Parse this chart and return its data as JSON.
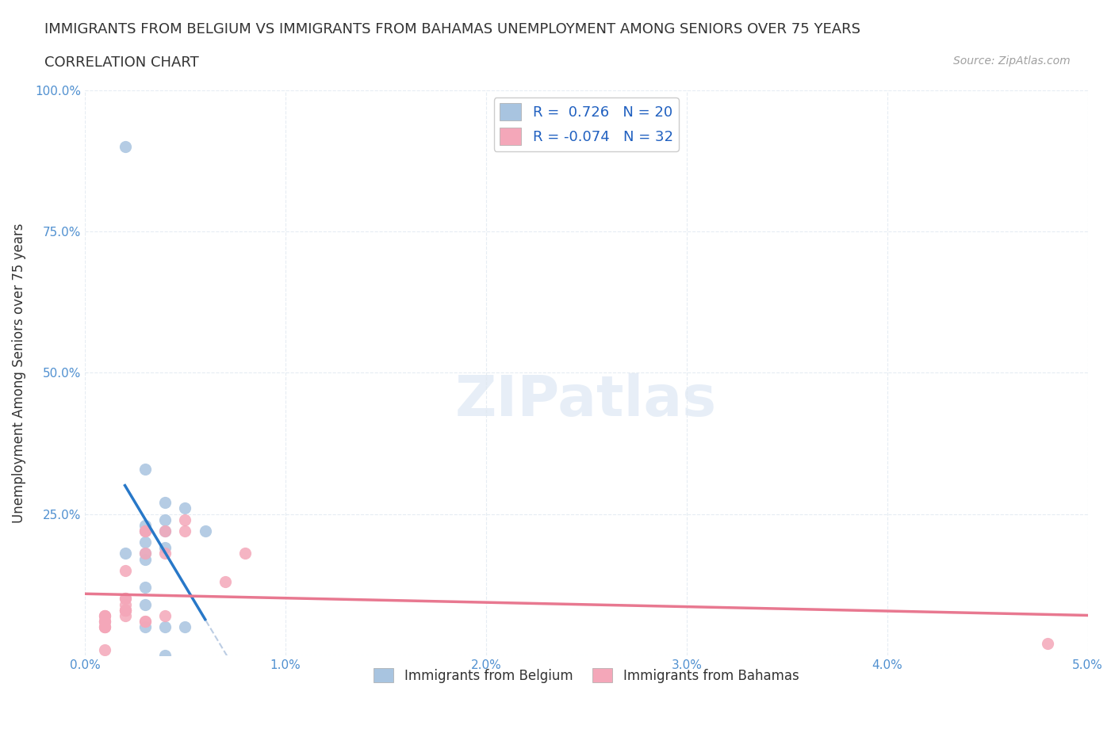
{
  "title_line1": "IMMIGRANTS FROM BELGIUM VS IMMIGRANTS FROM BAHAMAS UNEMPLOYMENT AMONG SENIORS OVER 75 YEARS",
  "title_line2": "CORRELATION CHART",
  "source": "Source: ZipAtlas.com",
  "xlabel": "Immigrants from Belgium",
  "ylabel": "Unemployment Among Seniors over 75 years",
  "watermark": "ZIPatlas",
  "xlim": [
    0.0,
    0.05
  ],
  "ylim": [
    0.0,
    1.0
  ],
  "xticks": [
    0.0,
    0.01,
    0.02,
    0.03,
    0.04,
    0.05
  ],
  "yticks": [
    0.0,
    0.25,
    0.5,
    0.75,
    1.0
  ],
  "xtick_labels": [
    "0.0%",
    "1.0%",
    "2.0%",
    "3.0%",
    "4.0%",
    "5.0%"
  ],
  "ytick_labels": [
    "",
    "25.0%",
    "50.0%",
    "75.0%",
    "100.0%"
  ],
  "belgium_r": 0.726,
  "belgium_n": 20,
  "bahamas_r": -0.074,
  "bahamas_n": 32,
  "belgium_color": "#a8c4e0",
  "bahamas_color": "#f4a7b9",
  "belgium_line_color": "#2878c8",
  "bahamas_line_color": "#e87890",
  "trend_line_color": "#a0b8d8",
  "background_color": "#ffffff",
  "grid_color": "#e0e8f0",
  "belgium_scatter_x": [
    0.002,
    0.003,
    0.002,
    0.003,
    0.003,
    0.004,
    0.003,
    0.003,
    0.004,
    0.003,
    0.004,
    0.004,
    0.005,
    0.004,
    0.005,
    0.006,
    0.004,
    0.003,
    0.003,
    0.003
  ],
  "belgium_scatter_y": [
    0.9,
    0.33,
    0.18,
    0.22,
    0.18,
    0.19,
    0.2,
    0.17,
    0.22,
    0.23,
    0.24,
    0.27,
    0.26,
    0.0,
    0.05,
    0.22,
    0.05,
    0.12,
    0.05,
    0.09
  ],
  "bahamas_scatter_x": [
    0.001,
    0.001,
    0.001,
    0.001,
    0.001,
    0.002,
    0.001,
    0.002,
    0.001,
    0.001,
    0.001,
    0.002,
    0.002,
    0.003,
    0.003,
    0.003,
    0.004,
    0.004,
    0.005,
    0.005,
    0.007,
    0.008,
    0.002,
    0.002,
    0.003,
    0.003,
    0.004,
    0.002,
    0.002,
    0.002,
    0.048,
    0.001
  ],
  "bahamas_scatter_y": [
    0.07,
    0.06,
    0.06,
    0.07,
    0.05,
    0.08,
    0.05,
    0.09,
    0.05,
    0.06,
    0.07,
    0.08,
    0.1,
    0.18,
    0.22,
    0.22,
    0.18,
    0.22,
    0.22,
    0.24,
    0.13,
    0.18,
    0.15,
    0.08,
    0.06,
    0.06,
    0.07,
    0.08,
    0.1,
    0.07,
    0.02,
    0.01
  ]
}
